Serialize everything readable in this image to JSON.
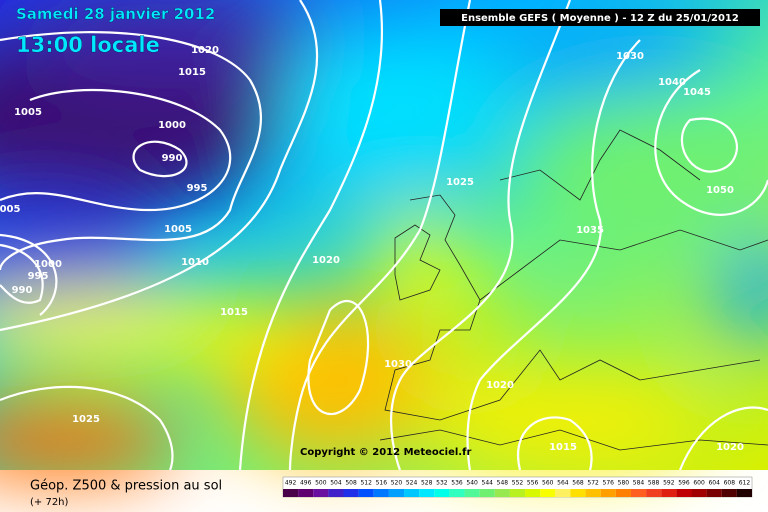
{
  "header": {
    "date": "Samedi 28 janvier 2012",
    "time": "13:00 locale",
    "model": "Ensemble GEFS ( Moyenne )  -  12 Z du 25/01/2012"
  },
  "isobar_labels": [
    "1020",
    "1015",
    "1005",
    "1000",
    "990",
    "995",
    "005",
    "1005",
    "1010",
    "1000",
    "995",
    "990",
    "1015",
    "1020",
    "1025",
    "1030",
    "1040",
    "1045",
    "1050",
    "1035",
    "1030",
    "1020",
    "1015",
    "1020",
    "1025"
  ],
  "copyright": "Copyright © 2012 Meteociel.fr",
  "footer": {
    "title": "Géop. Z500 & pression au sol",
    "lead": "(+ 72h)"
  },
  "legend": [
    {
      "label": "492",
      "color": "#4a0048"
    },
    {
      "label": "496",
      "color": "#5e0070"
    },
    {
      "label": "500",
      "color": "#6a10a0"
    },
    {
      "label": "504",
      "color": "#4020c8"
    },
    {
      "label": "508",
      "color": "#2030e8"
    },
    {
      "label": "512",
      "color": "#0050ff"
    },
    {
      "label": "516",
      "color": "#0078ff"
    },
    {
      "label": "520",
      "color": "#00a0ff"
    },
    {
      "label": "524",
      "color": "#00c8ff"
    },
    {
      "label": "528",
      "color": "#00e8ff"
    },
    {
      "label": "532",
      "color": "#00ffe8"
    },
    {
      "label": "536",
      "color": "#30ffc0"
    },
    {
      "label": "540",
      "color": "#50f898"
    },
    {
      "label": "544",
      "color": "#70f070"
    },
    {
      "label": "548",
      "color": "#98e850"
    },
    {
      "label": "552",
      "color": "#b8f020"
    },
    {
      "label": "556",
      "color": "#d8f800"
    },
    {
      "label": "560",
      "color": "#f8ff00"
    },
    {
      "label": "564",
      "color": "#fff060"
    },
    {
      "label": "568",
      "color": "#ffe000"
    },
    {
      "label": "572",
      "color": "#ffc000"
    },
    {
      "label": "576",
      "color": "#ffa000"
    },
    {
      "label": "580",
      "color": "#ff8000"
    },
    {
      "label": "584",
      "color": "#ff6020"
    },
    {
      "label": "588",
      "color": "#f04020"
    },
    {
      "label": "592",
      "color": "#e02010"
    },
    {
      "label": "596",
      "color": "#c00000"
    },
    {
      "label": "600",
      "color": "#a00000"
    },
    {
      "label": "604",
      "color": "#780000"
    },
    {
      "label": "608",
      "color": "#500000"
    },
    {
      "label": "612",
      "color": "#200000"
    }
  ]
}
